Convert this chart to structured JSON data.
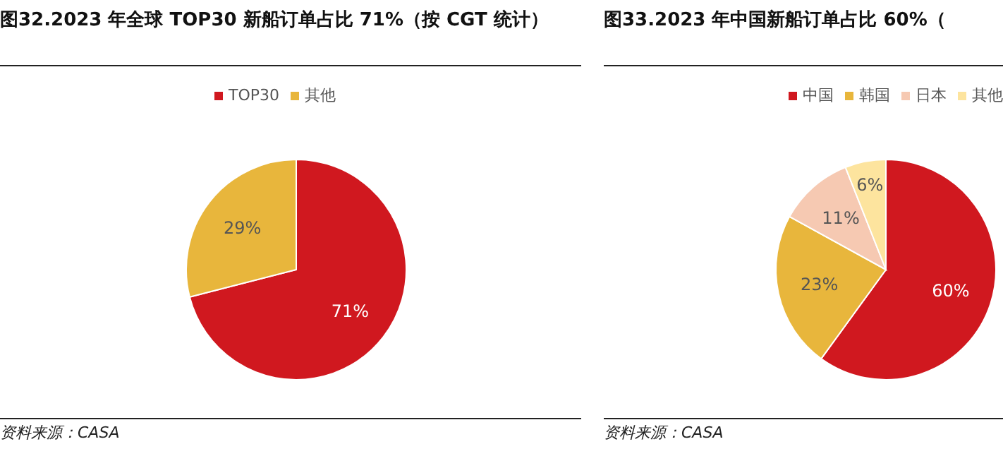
{
  "chart_data": [
    {
      "type": "pie",
      "title": "图32.2023 年全球 TOP30 新船订单占比 71%（按 CGT 统计）",
      "categories": [
        "TOP30",
        "其他"
      ],
      "values": [
        71,
        29
      ],
      "colors": [
        "#d0181f",
        "#e8b63c"
      ],
      "value_labels": [
        "71%",
        "29%"
      ],
      "legend": "top",
      "annotations": [
        "资料来源：CASA"
      ]
    },
    {
      "type": "pie",
      "title": "图33.2023 年中国新船订单占比 60%（",
      "categories": [
        "中国",
        "韩国",
        "日本",
        "其他"
      ],
      "values": [
        60,
        23,
        11,
        6
      ],
      "colors": [
        "#d0181f",
        "#e8b63c",
        "#f6c9b2",
        "#fde49e"
      ],
      "value_labels": [
        "60%",
        "23%",
        "11%",
        "6%"
      ],
      "legend": "top",
      "annotations": [
        "资料来源：CASA"
      ]
    }
  ]
}
